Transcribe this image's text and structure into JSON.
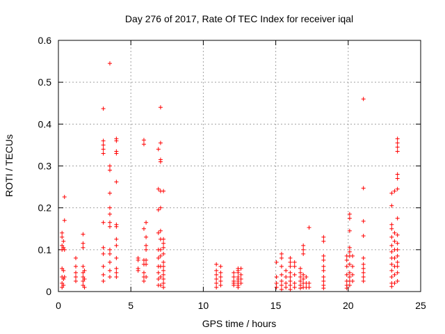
{
  "chart_data": {
    "type": "scatter",
    "title": "Day 276 of 2017, Rate Of TEC Index for receiver iqal",
    "xlabel": "GPS time / hours",
    "ylabel": "ROTI / TECUs",
    "xlim": [
      0,
      25
    ],
    "ylim": [
      0,
      0.6
    ],
    "xticks": [
      "0",
      "5",
      "10",
      "15",
      "20",
      "25"
    ],
    "yticks": [
      "0",
      "0.1",
      "0.2",
      "0.3",
      "0.4",
      "0.5",
      "0.6"
    ],
    "grid": true,
    "marker": "+",
    "color": "#ff0000",
    "series": [
      {
        "name": "ROTI",
        "points": [
          [
            0.25,
            0.14
          ],
          [
            0.25,
            0.13
          ],
          [
            0.25,
            0.11
          ],
          [
            0.25,
            0.1
          ],
          [
            0.25,
            0.055
          ],
          [
            0.25,
            0.035
          ],
          [
            0.25,
            0.02
          ],
          [
            0.25,
            0.01
          ],
          [
            0.35,
            0.12
          ],
          [
            0.35,
            0.105
          ],
          [
            0.35,
            0.05
          ],
          [
            0.35,
            0.03
          ],
          [
            0.35,
            0.015
          ],
          [
            0.42,
            0.226
          ],
          [
            0.42,
            0.17
          ],
          [
            0.42,
            0.1
          ],
          [
            0.42,
            0.035
          ],
          [
            1.2,
            0.08
          ],
          [
            1.2,
            0.06
          ],
          [
            1.2,
            0.045
          ],
          [
            1.2,
            0.035
          ],
          [
            1.2,
            0.025
          ],
          [
            1.7,
            0.137
          ],
          [
            1.7,
            0.115
          ],
          [
            1.7,
            0.105
          ],
          [
            1.7,
            0.06
          ],
          [
            1.7,
            0.045
          ],
          [
            1.7,
            0.035
          ],
          [
            1.7,
            0.025
          ],
          [
            1.7,
            0.015
          ],
          [
            1.8,
            0.05
          ],
          [
            1.8,
            0.03
          ],
          [
            1.8,
            0.01
          ],
          [
            3.1,
            0.437
          ],
          [
            3.1,
            0.36
          ],
          [
            3.1,
            0.35
          ],
          [
            3.1,
            0.34
          ],
          [
            3.1,
            0.33
          ],
          [
            3.1,
            0.165
          ],
          [
            3.1,
            0.105
          ],
          [
            3.1,
            0.09
          ],
          [
            3.1,
            0.06
          ],
          [
            3.1,
            0.04
          ],
          [
            3.1,
            0.025
          ],
          [
            3.55,
            0.545
          ],
          [
            3.55,
            0.3
          ],
          [
            3.55,
            0.29
          ],
          [
            3.55,
            0.235
          ],
          [
            3.55,
            0.2
          ],
          [
            3.55,
            0.185
          ],
          [
            3.55,
            0.165
          ],
          [
            3.55,
            0.155
          ],
          [
            3.55,
            0.1
          ],
          [
            3.55,
            0.09
          ],
          [
            3.55,
            0.07
          ],
          [
            3.55,
            0.05
          ],
          [
            3.55,
            0.035
          ],
          [
            4.0,
            0.365
          ],
          [
            4.0,
            0.36
          ],
          [
            4.0,
            0.335
          ],
          [
            4.0,
            0.33
          ],
          [
            4.0,
            0.262
          ],
          [
            4.0,
            0.16
          ],
          [
            4.0,
            0.155
          ],
          [
            4.0,
            0.125
          ],
          [
            4.0,
            0.11
          ],
          [
            4.0,
            0.08
          ],
          [
            4.0,
            0.055
          ],
          [
            4.0,
            0.045
          ],
          [
            4.0,
            0.035
          ],
          [
            5.5,
            0.08
          ],
          [
            5.5,
            0.075
          ],
          [
            5.5,
            0.055
          ],
          [
            5.5,
            0.05
          ],
          [
            5.9,
            0.362
          ],
          [
            5.9,
            0.352
          ],
          [
            5.9,
            0.15
          ],
          [
            5.9,
            0.075
          ],
          [
            5.9,
            0.065
          ],
          [
            5.9,
            0.045
          ],
          [
            5.9,
            0.035
          ],
          [
            5.9,
            0.025
          ],
          [
            6.05,
            0.165
          ],
          [
            6.05,
            0.13
          ],
          [
            6.05,
            0.11
          ],
          [
            6.05,
            0.1
          ],
          [
            6.05,
            0.075
          ],
          [
            6.05,
            0.065
          ],
          [
            6.05,
            0.035
          ],
          [
            6.9,
            0.34
          ],
          [
            6.9,
            0.245
          ],
          [
            6.9,
            0.195
          ],
          [
            6.9,
            0.14
          ],
          [
            6.9,
            0.1
          ],
          [
            6.9,
            0.08
          ],
          [
            6.9,
            0.06
          ],
          [
            6.9,
            0.045
          ],
          [
            6.9,
            0.03
          ],
          [
            6.9,
            0.015
          ],
          [
            7.05,
            0.44
          ],
          [
            7.05,
            0.355
          ],
          [
            7.05,
            0.315
          ],
          [
            7.05,
            0.31
          ],
          [
            7.05,
            0.24
          ],
          [
            7.05,
            0.2
          ],
          [
            7.05,
            0.145
          ],
          [
            7.05,
            0.125
          ],
          [
            7.05,
            0.1
          ],
          [
            7.05,
            0.085
          ],
          [
            7.05,
            0.06
          ],
          [
            7.05,
            0.035
          ],
          [
            7.05,
            0.015
          ],
          [
            7.25,
            0.24
          ],
          [
            7.25,
            0.125
          ],
          [
            7.25,
            0.115
          ],
          [
            7.25,
            0.105
          ],
          [
            7.25,
            0.09
          ],
          [
            7.25,
            0.07
          ],
          [
            7.25,
            0.06
          ],
          [
            7.25,
            0.05
          ],
          [
            7.25,
            0.04
          ],
          [
            7.25,
            0.03
          ],
          [
            7.25,
            0.02
          ],
          [
            7.25,
            0.01
          ],
          [
            10.9,
            0.065
          ],
          [
            10.9,
            0.05
          ],
          [
            10.9,
            0.04
          ],
          [
            10.9,
            0.03
          ],
          [
            10.9,
            0.02
          ],
          [
            10.9,
            0.01
          ],
          [
            11.2,
            0.06
          ],
          [
            11.2,
            0.045
          ],
          [
            11.2,
            0.035
          ],
          [
            11.2,
            0.025
          ],
          [
            11.2,
            0.015
          ],
          [
            12.1,
            0.045
          ],
          [
            12.1,
            0.035
          ],
          [
            12.1,
            0.025
          ],
          [
            12.1,
            0.02
          ],
          [
            12.1,
            0.015
          ],
          [
            12.4,
            0.055
          ],
          [
            12.4,
            0.05
          ],
          [
            12.4,
            0.045
          ],
          [
            12.4,
            0.035
          ],
          [
            12.4,
            0.03
          ],
          [
            12.4,
            0.025
          ],
          [
            12.4,
            0.02
          ],
          [
            12.4,
            0.015
          ],
          [
            12.4,
            0.01
          ],
          [
            12.6,
            0.055
          ],
          [
            12.6,
            0.04
          ],
          [
            12.6,
            0.03
          ],
          [
            12.6,
            0.02
          ],
          [
            15.05,
            0.07
          ],
          [
            15.05,
            0.035
          ],
          [
            15.05,
            0.02
          ],
          [
            15.05,
            0.01
          ],
          [
            15.4,
            0.09
          ],
          [
            15.4,
            0.08
          ],
          [
            15.4,
            0.06
          ],
          [
            15.4,
            0.04
          ],
          [
            15.4,
            0.025
          ],
          [
            15.4,
            0.015
          ],
          [
            15.4,
            0.005
          ],
          [
            15.7,
            0.05
          ],
          [
            15.7,
            0.035
          ],
          [
            15.7,
            0.02
          ],
          [
            15.7,
            0.01
          ],
          [
            16.0,
            0.08
          ],
          [
            16.0,
            0.07
          ],
          [
            16.0,
            0.06
          ],
          [
            16.0,
            0.045
          ],
          [
            16.0,
            0.035
          ],
          [
            16.0,
            0.025
          ],
          [
            16.0,
            0.015
          ],
          [
            16.0,
            0.005
          ],
          [
            16.3,
            0.07
          ],
          [
            16.3,
            0.06
          ],
          [
            16.3,
            0.04
          ],
          [
            16.3,
            0.02
          ],
          [
            16.3,
            0.01
          ],
          [
            16.7,
            0.055
          ],
          [
            16.7,
            0.045
          ],
          [
            16.7,
            0.035
          ],
          [
            16.7,
            0.025
          ],
          [
            16.7,
            0.015
          ],
          [
            16.7,
            0.008
          ],
          [
            16.9,
            0.11
          ],
          [
            16.9,
            0.1
          ],
          [
            16.9,
            0.09
          ],
          [
            16.9,
            0.04
          ],
          [
            16.9,
            0.03
          ],
          [
            16.9,
            0.02
          ],
          [
            16.9,
            0.01
          ],
          [
            17.1,
            0.035
          ],
          [
            17.1,
            0.02
          ],
          [
            17.1,
            0.01
          ],
          [
            17.3,
            0.153
          ],
          [
            17.3,
            0.02
          ],
          [
            17.3,
            0.01
          ],
          [
            18.3,
            0.13
          ],
          [
            18.3,
            0.12
          ],
          [
            18.3,
            0.085
          ],
          [
            18.3,
            0.075
          ],
          [
            18.3,
            0.06
          ],
          [
            18.3,
            0.05
          ],
          [
            18.3,
            0.035
          ],
          [
            18.3,
            0.025
          ],
          [
            18.3,
            0.015
          ],
          [
            18.3,
            0.008
          ],
          [
            19.9,
            0.085
          ],
          [
            19.9,
            0.075
          ],
          [
            19.9,
            0.06
          ],
          [
            19.9,
            0.04
          ],
          [
            19.9,
            0.025
          ],
          [
            19.9,
            0.015
          ],
          [
            19.9,
            0.008
          ],
          [
            20.1,
            0.185
          ],
          [
            20.1,
            0.175
          ],
          [
            20.1,
            0.145
          ],
          [
            20.1,
            0.105
          ],
          [
            20.1,
            0.095
          ],
          [
            20.1,
            0.085
          ],
          [
            20.1,
            0.065
          ],
          [
            20.1,
            0.045
          ],
          [
            20.1,
            0.035
          ],
          [
            20.1,
            0.025
          ],
          [
            20.1,
            0.015
          ],
          [
            20.3,
            0.085
          ],
          [
            20.3,
            0.06
          ],
          [
            20.3,
            0.04
          ],
          [
            20.3,
            0.025
          ],
          [
            21.05,
            0.46
          ],
          [
            21.05,
            0.247
          ],
          [
            21.05,
            0.168
          ],
          [
            21.05,
            0.133
          ],
          [
            21.05,
            0.08
          ],
          [
            21.05,
            0.065
          ],
          [
            21.05,
            0.055
          ],
          [
            21.05,
            0.045
          ],
          [
            21.05,
            0.035
          ],
          [
            21.05,
            0.025
          ],
          [
            23.0,
            0.235
          ],
          [
            23.0,
            0.205
          ],
          [
            23.0,
            0.16
          ],
          [
            23.0,
            0.15
          ],
          [
            23.0,
            0.13
          ],
          [
            23.0,
            0.11
          ],
          [
            23.0,
            0.095
          ],
          [
            23.0,
            0.08
          ],
          [
            23.0,
            0.065
          ],
          [
            23.0,
            0.05
          ],
          [
            23.0,
            0.035
          ],
          [
            23.0,
            0.02
          ],
          [
            23.0,
            0.012
          ],
          [
            23.2,
            0.24
          ],
          [
            23.2,
            0.14
          ],
          [
            23.2,
            0.12
          ],
          [
            23.2,
            0.1
          ],
          [
            23.2,
            0.08
          ],
          [
            23.2,
            0.06
          ],
          [
            23.2,
            0.04
          ],
          [
            23.2,
            0.02
          ],
          [
            23.4,
            0.365
          ],
          [
            23.4,
            0.355
          ],
          [
            23.4,
            0.345
          ],
          [
            23.4,
            0.335
          ],
          [
            23.4,
            0.28
          ],
          [
            23.4,
            0.27
          ],
          [
            23.4,
            0.245
          ],
          [
            23.4,
            0.175
          ],
          [
            23.4,
            0.135
          ],
          [
            23.4,
            0.115
          ],
          [
            23.4,
            0.1
          ],
          [
            23.4,
            0.085
          ],
          [
            23.4,
            0.07
          ],
          [
            23.4,
            0.06
          ],
          [
            23.4,
            0.045
          ],
          [
            23.4,
            0.025
          ]
        ]
      }
    ]
  }
}
